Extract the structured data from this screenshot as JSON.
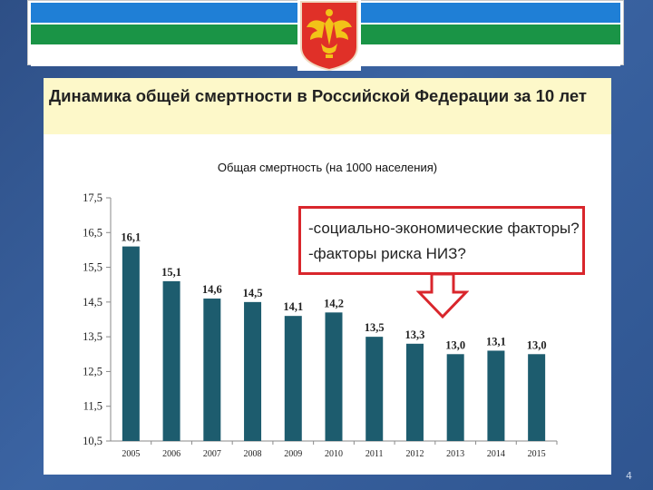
{
  "slide": {
    "title": "Динамика общей смертности в Российской Федерации за 10 лет",
    "page_number": "4"
  },
  "colors": {
    "bar": "#1d5c6e",
    "flag_blue": "#1f7fd6",
    "flag_green": "#1a9446",
    "emblem_red": "#e03028",
    "emblem_gold": "#f2c318",
    "callout_border": "#d9262c",
    "title_band": "#fdf8c9"
  },
  "emblem": {
    "icon": "coat-of-arms-icon"
  },
  "callout": {
    "lines": [
      "-социально-экономические факторы?",
      "-факторы риска НИЗ?"
    ],
    "arrow": "down-arrow-icon"
  },
  "chart_data": {
    "type": "bar",
    "title": "Общая смертность (на 1000 населения)",
    "categories": [
      "2005",
      "2006",
      "2007",
      "2008",
      "2009",
      "2010",
      "2011",
      "2012",
      "2013",
      "2014",
      "2015"
    ],
    "values": [
      16.1,
      15.1,
      14.6,
      14.5,
      14.1,
      14.2,
      13.5,
      13.3,
      13.0,
      13.1,
      13.0
    ],
    "value_labels": [
      "16,1",
      "15,1",
      "14,6",
      "14,5",
      "14,1",
      "14,2",
      "13,5",
      "13,3",
      "13,0",
      "13,1",
      "13,0"
    ],
    "xlabel": "",
    "ylabel": "",
    "ylim": [
      10.5,
      17.5
    ],
    "yticks": [
      10.5,
      11.5,
      12.5,
      13.5,
      14.5,
      15.5,
      16.5,
      17.5
    ],
    "ytick_labels": [
      "10,5",
      "11,5",
      "12,5",
      "13,5",
      "14,5",
      "15,5",
      "16,5",
      "17,5"
    ],
    "grid": false,
    "legend": "none"
  }
}
